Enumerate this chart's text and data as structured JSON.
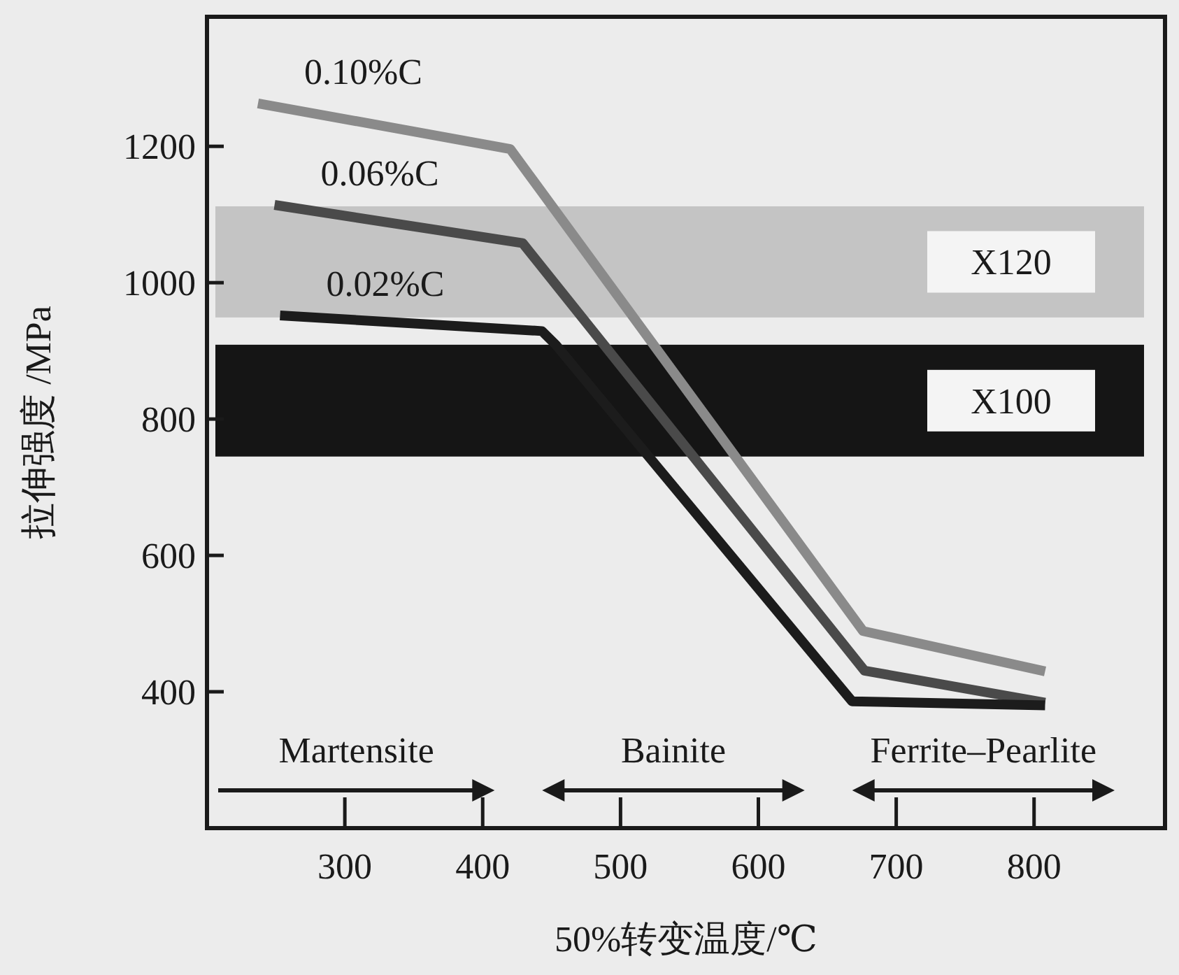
{
  "chart_data": {
    "type": "line",
    "xlabel": "50%转变温度/℃",
    "ylabel": "拉伸强度 /MPa",
    "xlim": [
      200,
      895
    ],
    "ylim": [
      200,
      1390
    ],
    "xticks": [
      300,
      400,
      500,
      600,
      700,
      800
    ],
    "yticks": [
      400,
      600,
      800,
      1000,
      1200
    ],
    "grid": false,
    "marker": "none",
    "line_style": "solid",
    "series": [
      {
        "name": "0.10%C",
        "color": "#8a8a8a",
        "x": [
          237,
          420,
          676,
          808
        ],
        "values": [
          1263,
          1196,
          489,
          430
        ]
      },
      {
        "name": "0.06%C",
        "color": "#4a4a4a",
        "x": [
          249,
          429,
          677,
          808
        ],
        "values": [
          1114,
          1058,
          431,
          384
        ]
      },
      {
        "name": "0.02%C",
        "color": "#1c1c1c",
        "x": [
          253,
          443,
          453,
          668,
          808
        ],
        "values": [
          952,
          929,
          909,
          386,
          380
        ]
      }
    ],
    "bands": [
      {
        "axis": "y",
        "from": 949,
        "to": 1112,
        "label": "X120",
        "color": "#c4c4c4"
      },
      {
        "axis": "y",
        "from": 745,
        "to": 909,
        "label": "X100",
        "color": "#151515"
      }
    ],
    "annotations": [
      "Martensite",
      "Bainite",
      "Ferrite–Pearlite"
    ]
  }
}
